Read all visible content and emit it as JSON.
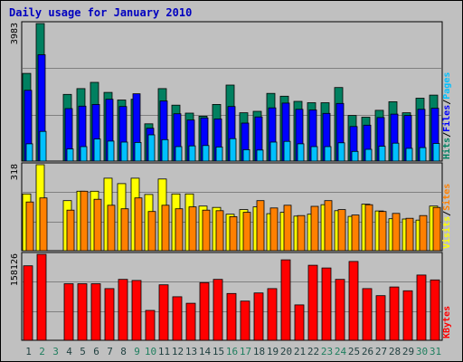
{
  "header": {
    "title": "Daily usage for January 2010"
  },
  "chart_data": [
    {
      "type": "bar",
      "panel": "top",
      "categories": [
        "1",
        "2",
        "3",
        "4",
        "5",
        "6",
        "7",
        "8",
        "9",
        "10",
        "11",
        "12",
        "13",
        "14",
        "15",
        "16",
        "17",
        "18",
        "19",
        "20",
        "21",
        "22",
        "23",
        "24",
        "25",
        "26",
        "27",
        "28",
        "29",
        "30",
        "31"
      ],
      "x_label_colors": [
        "#1f3f3f",
        "#1f7f5f",
        "#1f7f5f",
        "#1f3f3f",
        "#1f3f3f",
        "#1f3f3f",
        "#1f3f3f",
        "#1f3f3f",
        "#1f7f5f",
        "#1f7f5f",
        "#1f3f3f",
        "#1f3f3f",
        "#1f3f3f",
        "#1f3f3f",
        "#1f3f3f",
        "#1f7f5f",
        "#1f7f5f",
        "#1f3f3f",
        "#1f3f3f",
        "#1f3f3f",
        "#1f3f3f",
        "#1f3f3f",
        "#1f7f5f",
        "#1f7f5f",
        "#1f3f3f",
        "#1f3f3f",
        "#1f3f3f",
        "#1f3f3f",
        "#1f3f3f",
        "#1f7f5f",
        "#1f7f5f"
      ],
      "y_tick_label": "3983",
      "ylim": [
        0,
        3983
      ],
      "side_labels": [
        {
          "text": "Pages",
          "color": "#00c0ff"
        },
        {
          "text": "Files",
          "color": "#0000ff"
        },
        {
          "text": "Hits",
          "color": "#008060"
        }
      ],
      "series": [
        {
          "name": "Hits",
          "color": "#008060",
          "values": [
            2540,
            3983,
            0,
            1930,
            2100,
            2280,
            1990,
            1770,
            1790,
            1080,
            2100,
            1620,
            1390,
            1300,
            1640,
            2200,
            1400,
            1440,
            1960,
            1880,
            1730,
            1690,
            1690,
            2130,
            1320,
            1270,
            1470,
            1720,
            1400,
            1820,
            1910
          ]
        },
        {
          "name": "Files",
          "color": "#0000ff",
          "values": [
            2050,
            3080,
            0,
            1520,
            1590,
            1640,
            1790,
            1580,
            1950,
            950,
            1740,
            1370,
            1190,
            1250,
            1220,
            1580,
            1100,
            1280,
            1540,
            1680,
            1500,
            1480,
            1380,
            1670,
            1000,
            1040,
            1260,
            1360,
            1320,
            1500,
            1530
          ]
        },
        {
          "name": "Pages",
          "color": "#00c0ff",
          "values": [
            500,
            860,
            0,
            350,
            420,
            640,
            580,
            550,
            540,
            760,
            620,
            420,
            440,
            450,
            410,
            650,
            330,
            320,
            550,
            570,
            500,
            420,
            420,
            530,
            280,
            340,
            430,
            520,
            370,
            390,
            510
          ]
        }
      ]
    },
    {
      "type": "bar",
      "panel": "middle",
      "categories": [
        "1",
        "2",
        "3",
        "4",
        "5",
        "6",
        "7",
        "8",
        "9",
        "10",
        "11",
        "12",
        "13",
        "14",
        "15",
        "16",
        "17",
        "18",
        "19",
        "20",
        "21",
        "22",
        "23",
        "24",
        "25",
        "26",
        "27",
        "28",
        "29",
        "30",
        "31"
      ],
      "y_tick_label": "318",
      "ylim": [
        0,
        318
      ],
      "side_labels": [
        {
          "text": "Sites",
          "color": "#ff8000"
        },
        {
          "text": "Visits",
          "color": "#ffff00"
        }
      ],
      "series": [
        {
          "name": "Visits",
          "color": "#ffff00",
          "values": [
            210,
            318,
            0,
            185,
            220,
            220,
            268,
            248,
            268,
            208,
            265,
            210,
            210,
            165,
            160,
            135,
            152,
            162,
            137,
            142,
            128,
            135,
            170,
            148,
            127,
            172,
            147,
            118,
            117,
            113,
            165
          ]
        },
        {
          "name": "Sites",
          "color": "#ff8000",
          "values": [
            180,
            195,
            0,
            150,
            220,
            190,
            168,
            155,
            195,
            145,
            168,
            155,
            162,
            150,
            148,
            126,
            142,
            185,
            158,
            168,
            130,
            164,
            185,
            152,
            132,
            170,
            145,
            138,
            120,
            130,
            160
          ]
        }
      ]
    },
    {
      "type": "bar",
      "panel": "bottom",
      "categories": [
        "1",
        "2",
        "3",
        "4",
        "5",
        "6",
        "7",
        "8",
        "9",
        "10",
        "11",
        "12",
        "13",
        "14",
        "15",
        "16",
        "17",
        "18",
        "19",
        "20",
        "21",
        "22",
        "23",
        "24",
        "25",
        "26",
        "27",
        "28",
        "29",
        "30",
        "31"
      ],
      "y_tick_label": "158126",
      "ylim": [
        0,
        158126
      ],
      "side_labels": [
        {
          "text": "KBytes",
          "color": "#ff0000"
        }
      ],
      "series": [
        {
          "name": "KBytes",
          "color": "#ff0000",
          "values": [
            137000,
            158126,
            0,
            104000,
            104000,
            104000,
            95000,
            112000,
            110000,
            55000,
            102000,
            80000,
            68000,
            106000,
            112000,
            86000,
            72000,
            87000,
            95000,
            148000,
            65000,
            138000,
            133000,
            112000,
            145000,
            95000,
            82000,
            98000,
            91000,
            120000,
            111000
          ]
        }
      ]
    }
  ]
}
